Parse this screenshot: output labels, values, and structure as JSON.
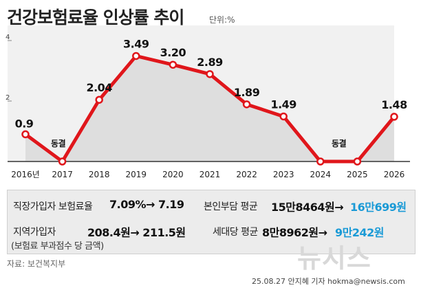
{
  "title": "건강보험료율 인상률 추이",
  "unit": "단위:%",
  "chart_data": {
    "type": "line",
    "title": "건강보험료율 인상률 추이",
    "unit": "%",
    "categories": [
      "2016년",
      "2017",
      "2018",
      "2019",
      "2020",
      "2021",
      "2022",
      "2023",
      "2024",
      "2025",
      "2026"
    ],
    "values": [
      0.9,
      0,
      2.04,
      3.49,
      3.2,
      2.89,
      1.89,
      1.49,
      0,
      0,
      1.48
    ],
    "data_labels": [
      "0.9",
      "동결",
      "2.04",
      "3.49",
      "3.20",
      "2.89",
      "1.89",
      "1.49",
      "동결",
      "",
      "1.48"
    ],
    "y_ticks": [
      "2",
      "4"
    ],
    "ylim": [
      0,
      4.5
    ],
    "line_color": "#e0161b",
    "area_color": "#dedede",
    "marker_fill": "#ffffff",
    "grid": false
  },
  "info": {
    "row1_label": "직장가입자 보험료율",
    "row1_value": "7.09%→ 7.19",
    "row1b_label": "본인부담 평균",
    "row1b_old": "15만8464원→",
    "row1b_new": "16만699원",
    "row2_label": "지역가입자",
    "row2_value": "208.4원→ 211.5원",
    "row2_note": "(보험료 부과점수 당 금액)",
    "row2b_label": "세대당 평균",
    "row2b_old": "8만8962원→",
    "row2b_new": "9만242원",
    "accent": "#1a9ad6"
  },
  "source": "자료: 보건복지부",
  "logo": "뉴시스",
  "credit": "25.08.27 안지혜 기자 hokma@newsis.com"
}
